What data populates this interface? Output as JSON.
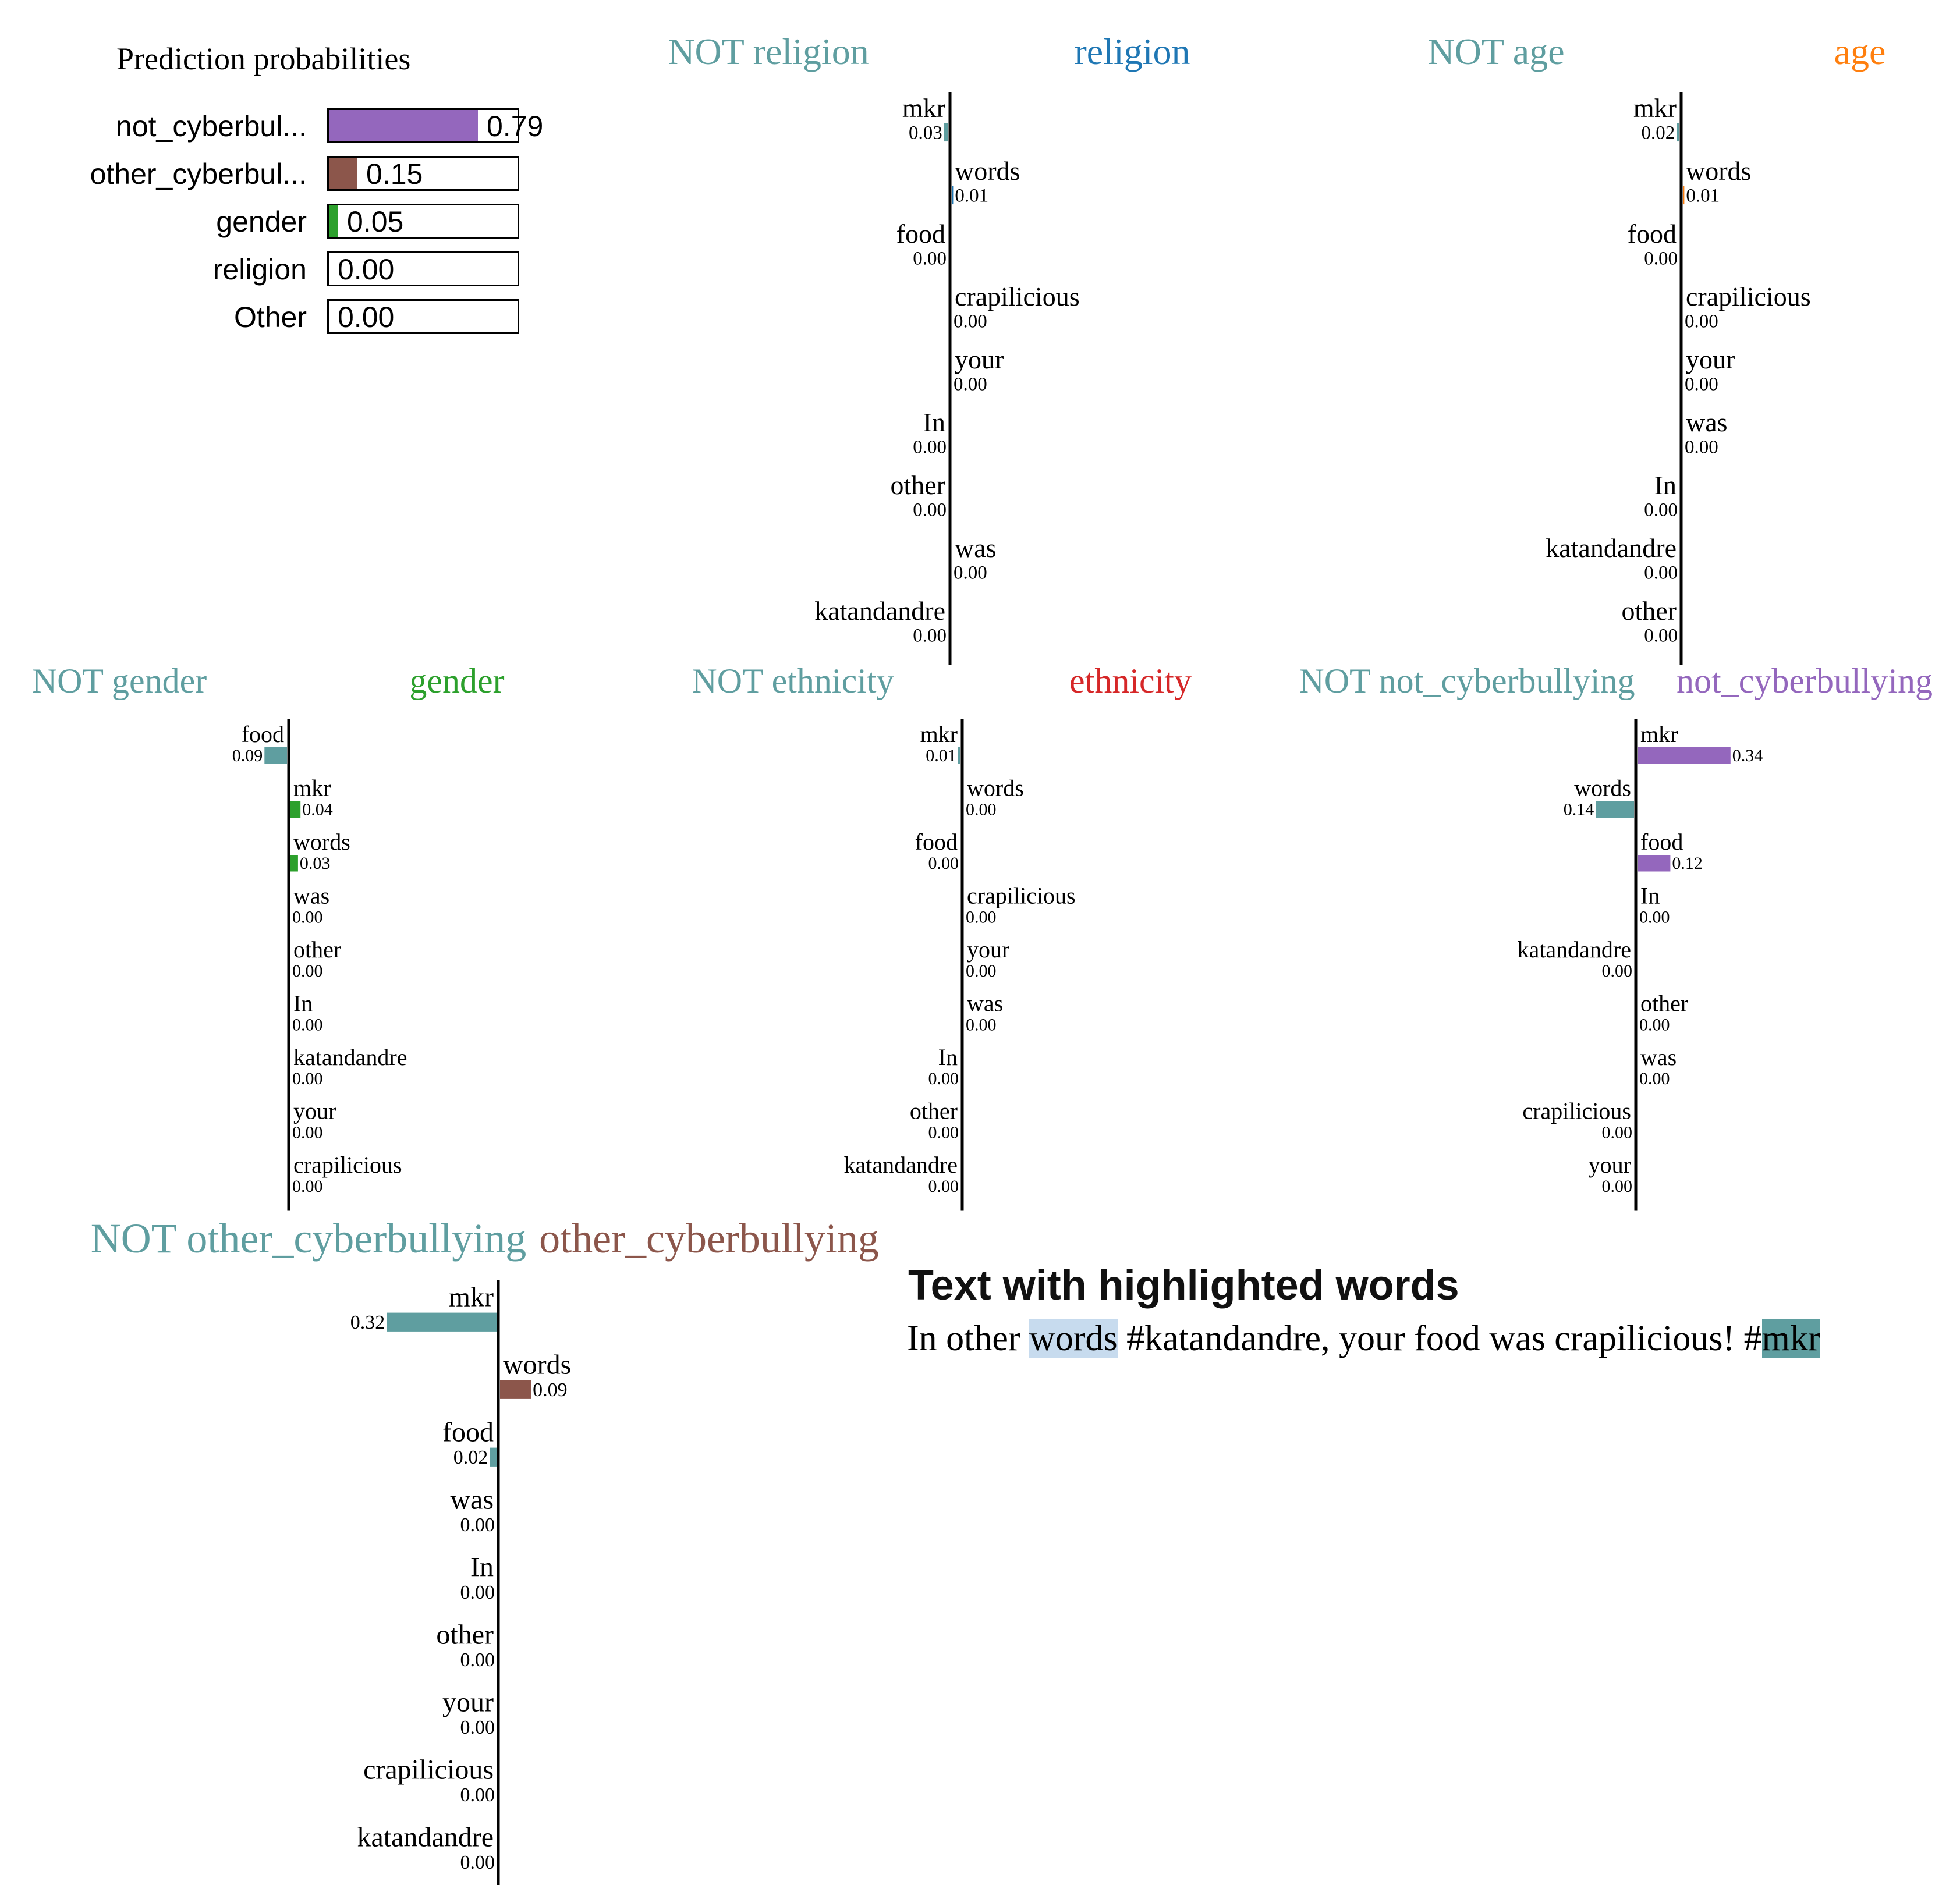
{
  "colors": {
    "not_class": "#5f9ea0",
    "religion": "#1f77b4",
    "age": "#ff7f0e",
    "gender": "#2ca02c",
    "ethnicity": "#d62728",
    "not_cyberbullying": "#9467bd",
    "other_cyberbullying": "#8c564b"
  },
  "prediction_probabilities": {
    "title": "Prediction probabilities",
    "items": [
      {
        "label": "not_cyberbul...",
        "value": 0.79,
        "display": "0.79",
        "color": "#9467bd"
      },
      {
        "label": "other_cyberbul...",
        "value": 0.15,
        "display": "0.15",
        "color": "#8c564b"
      },
      {
        "label": "gender",
        "value": 0.05,
        "display": "0.05",
        "color": "#2ca02c"
      },
      {
        "label": "religion",
        "value": 0.0,
        "display": "0.00",
        "color": "#1f77b4"
      },
      {
        "label": "Other",
        "value": 0.0,
        "display": "0.00",
        "color": "#cccccc"
      }
    ]
  },
  "chart_data": [
    {
      "type": "bar",
      "title_not": "NOT religion",
      "title_class": "religion",
      "class_color": "#1f77b4",
      "features": [
        {
          "word": "mkr",
          "value": -0.03,
          "label": "0.03"
        },
        {
          "word": "words",
          "value": 0.01,
          "label": "0.01"
        },
        {
          "word": "food",
          "value": 0,
          "side": "not",
          "label": "0.00"
        },
        {
          "word": "crapilicious",
          "value": 0,
          "side": "class",
          "label": "0.00"
        },
        {
          "word": "your",
          "value": 0,
          "side": "class",
          "label": "0.00"
        },
        {
          "word": "In",
          "value": 0,
          "side": "not",
          "label": "0.00"
        },
        {
          "word": "other",
          "value": 0,
          "side": "not",
          "label": "0.00"
        },
        {
          "word": "was",
          "value": 0,
          "side": "class",
          "label": "0.00"
        },
        {
          "word": "katandandre",
          "value": 0,
          "side": "not",
          "label": "0.00"
        }
      ]
    },
    {
      "type": "bar",
      "title_not": "NOT age",
      "title_class": "age",
      "class_color": "#ff7f0e",
      "features": [
        {
          "word": "mkr",
          "value": -0.02,
          "label": "0.02"
        },
        {
          "word": "words",
          "value": 0.01,
          "label": "0.01"
        },
        {
          "word": "food",
          "value": 0,
          "side": "not",
          "label": "0.00"
        },
        {
          "word": "crapilicious",
          "value": 0,
          "side": "class",
          "label": "0.00"
        },
        {
          "word": "your",
          "value": 0,
          "side": "class",
          "label": "0.00"
        },
        {
          "word": "was",
          "value": 0,
          "side": "class",
          "label": "0.00"
        },
        {
          "word": "In",
          "value": 0,
          "side": "not",
          "label": "0.00"
        },
        {
          "word": "katandandre",
          "value": 0,
          "side": "not",
          "label": "0.00"
        },
        {
          "word": "other",
          "value": 0,
          "side": "not",
          "label": "0.00"
        }
      ]
    },
    {
      "type": "bar",
      "title_not": "NOT gender",
      "title_class": "gender",
      "class_color": "#2ca02c",
      "features": [
        {
          "word": "food",
          "value": -0.09,
          "label": "0.09"
        },
        {
          "word": "mkr",
          "value": 0.04,
          "label": "0.04"
        },
        {
          "word": "words",
          "value": 0.03,
          "label": "0.03"
        },
        {
          "word": "was",
          "value": 0,
          "side": "class",
          "label": "0.00"
        },
        {
          "word": "other",
          "value": 0,
          "side": "class",
          "label": "0.00"
        },
        {
          "word": "In",
          "value": 0,
          "side": "class",
          "label": "0.00"
        },
        {
          "word": "katandandre",
          "value": 0,
          "side": "class",
          "label": "0.00"
        },
        {
          "word": "your",
          "value": 0,
          "side": "class",
          "label": "0.00"
        },
        {
          "word": "crapilicious",
          "value": 0,
          "side": "class",
          "label": "0.00"
        }
      ]
    },
    {
      "type": "bar",
      "title_not": "NOT ethnicity",
      "title_class": "ethnicity",
      "class_color": "#d62728",
      "features": [
        {
          "word": "mkr",
          "value": -0.01,
          "label": "0.01"
        },
        {
          "word": "words",
          "value": 0,
          "side": "class",
          "label": "0.00"
        },
        {
          "word": "food",
          "value": 0,
          "side": "not",
          "label": "0.00"
        },
        {
          "word": "crapilicious",
          "value": 0,
          "side": "class",
          "label": "0.00"
        },
        {
          "word": "your",
          "value": 0,
          "side": "class",
          "label": "0.00"
        },
        {
          "word": "was",
          "value": 0,
          "side": "class",
          "label": "0.00"
        },
        {
          "word": "In",
          "value": 0,
          "side": "not",
          "label": "0.00"
        },
        {
          "word": "other",
          "value": 0,
          "side": "not",
          "label": "0.00"
        },
        {
          "word": "katandandre",
          "value": 0,
          "side": "not",
          "label": "0.00"
        }
      ]
    },
    {
      "type": "bar",
      "title_not": "NOT not_cyberbullying",
      "title_class": "not_cyberbullying",
      "class_color": "#9467bd",
      "features": [
        {
          "word": "mkr",
          "value": 0.34,
          "label": "0.34"
        },
        {
          "word": "words",
          "value": -0.14,
          "label": "0.14"
        },
        {
          "word": "food",
          "value": 0.12,
          "label": "0.12"
        },
        {
          "word": "In",
          "value": 0,
          "side": "class",
          "label": "0.00"
        },
        {
          "word": "katandandre",
          "value": 0,
          "side": "not",
          "label": "0.00"
        },
        {
          "word": "other",
          "value": 0,
          "side": "class",
          "label": "0.00"
        },
        {
          "word": "was",
          "value": 0,
          "side": "class",
          "label": "0.00"
        },
        {
          "word": "crapilicious",
          "value": 0,
          "side": "not",
          "label": "0.00"
        },
        {
          "word": "your",
          "value": 0,
          "side": "not",
          "label": "0.00"
        }
      ]
    },
    {
      "type": "bar",
      "title_not": "NOT other_cyberbullying",
      "title_class": "other_cyberbullying",
      "class_color": "#8c564b",
      "features": [
        {
          "word": "mkr",
          "value": -0.32,
          "label": "0.32"
        },
        {
          "word": "words",
          "value": 0.09,
          "label": "0.09"
        },
        {
          "word": "food",
          "value": -0.02,
          "label": "0.02"
        },
        {
          "word": "was",
          "value": 0,
          "side": "not",
          "label": "0.00"
        },
        {
          "word": "In",
          "value": 0,
          "side": "not",
          "label": "0.00"
        },
        {
          "word": "other",
          "value": 0,
          "side": "not",
          "label": "0.00"
        },
        {
          "word": "your",
          "value": 0,
          "side": "not",
          "label": "0.00"
        },
        {
          "word": "crapilicious",
          "value": 0,
          "side": "not",
          "label": "0.00"
        },
        {
          "word": "katandandre",
          "value": 0,
          "side": "not",
          "label": "0.00"
        }
      ]
    }
  ],
  "highlighted_text": {
    "title": "Text with highlighted words",
    "segments": [
      {
        "text": "In other ",
        "highlight": "none"
      },
      {
        "text": "words",
        "highlight": "light-blue"
      },
      {
        "text": " #katandandre, your food was crapilicious! #",
        "highlight": "none"
      },
      {
        "text": "mkr",
        "highlight": "teal"
      }
    ]
  }
}
